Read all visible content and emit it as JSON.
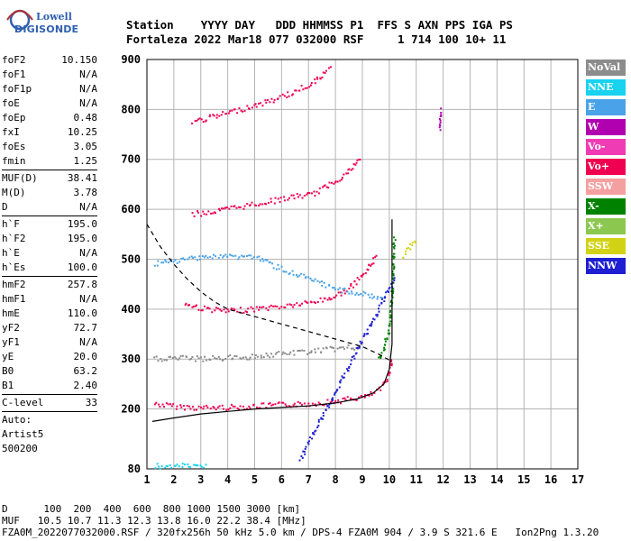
{
  "logo": {
    "line1": "Lowell",
    "line2": "DIGISONDE"
  },
  "header": {
    "row1": "Station    YYYY DAY   DDD HHMMSS P1  FFS S AXN PPS IGA PS",
    "row2": "Fortaleza 2022 Mar18 077 032000 RSF     1 714 100 10+ 11"
  },
  "params": [
    {
      "name": "foF2",
      "value": "10.150"
    },
    {
      "name": "foF1",
      "value": "N/A"
    },
    {
      "name": "foF1p",
      "value": "N/A"
    },
    {
      "name": "foE",
      "value": "N/A"
    },
    {
      "name": "foEp",
      "value": "0.48"
    },
    {
      "name": "fxI",
      "value": "10.25"
    },
    {
      "name": "foEs",
      "value": "3.05"
    },
    {
      "name": "fmin",
      "value": "1.25"
    },
    {
      "divider": true
    },
    {
      "name": "MUF(D)",
      "value": "38.41"
    },
    {
      "name": "M(D)",
      "value": "3.78"
    },
    {
      "name": "D",
      "value": "N/A"
    },
    {
      "divider": true
    },
    {
      "name": "h`F",
      "value": "195.0"
    },
    {
      "name": "h`F2",
      "value": "195.0"
    },
    {
      "name": "h`E",
      "value": "N/A"
    },
    {
      "name": "h`Es",
      "value": "100.0"
    },
    {
      "divider": true
    },
    {
      "name": "hmF2",
      "value": "257.8"
    },
    {
      "name": "hmF1",
      "value": "N/A"
    },
    {
      "name": "hmE",
      "value": "110.0"
    },
    {
      "name": "yF2",
      "value": "72.7"
    },
    {
      "name": "yF1",
      "value": "N/A"
    },
    {
      "name": "yE",
      "value": "20.0"
    },
    {
      "name": "B0",
      "value": "63.2"
    },
    {
      "name": "B1",
      "value": "2.40"
    },
    {
      "divider": true
    },
    {
      "name": "C-level",
      "value": "33"
    },
    {
      "divider": true
    },
    {
      "text": "Auto:"
    },
    {
      "text": "Artist5"
    },
    {
      "text": "500200"
    }
  ],
  "legend": [
    {
      "label": "NoVal",
      "color": "#8c8c8c"
    },
    {
      "label": "NNE",
      "color": "#19d2f0"
    },
    {
      "label": "E",
      "color": "#4aa3e8"
    },
    {
      "label": "W",
      "color": "#b000b0"
    },
    {
      "label": "Vo-",
      "color": "#f03cb4"
    },
    {
      "label": "Vo+",
      "color": "#f00050"
    },
    {
      "label": "SSW",
      "color": "#f5a0a0"
    },
    {
      "label": "X-",
      "color": "#008200"
    },
    {
      "label": "X+",
      "color": "#8cc850"
    },
    {
      "label": "SSE",
      "color": "#d2d214"
    },
    {
      "label": "NNW",
      "color": "#1e1ed2"
    }
  ],
  "footer": {
    "line1": "D      100  200  400  600  800 1000 1500 3000 [km]",
    "line2": "MUF   10.5 10.7 11.3 12.3 13.8 16.0 22.2 38.4 [MHz]",
    "line3": "FZA0M_2022077032000.RSF / 320fx256h 50 kHz 5.0 km / DPS-4 FZA0M 904 / 3.9 S 321.6 E   Ion2Png 1.3.20"
  },
  "chart_data": {
    "type": "scatter",
    "title": "",
    "xlabel": "",
    "ylabel": "",
    "xlim": [
      1,
      17
    ],
    "ylim": [
      80,
      900
    ],
    "x_ticks": [
      1,
      2,
      3,
      4,
      5,
      6,
      7,
      8,
      9,
      10,
      11,
      12,
      13,
      14,
      15,
      16,
      17
    ],
    "y_ticks": [
      80,
      200,
      300,
      400,
      500,
      600,
      700,
      800,
      900
    ],
    "grid": true,
    "legend_position": "right",
    "series": [
      {
        "name": "Vo+",
        "color": "#f00050",
        "x": [
          1.3,
          2.0,
          3.0,
          4.0,
          5.0,
          6.0,
          7.0,
          8.0,
          8.6,
          9.2,
          9.7,
          10.0,
          10.1
        ],
        "y": [
          210,
          205,
          202,
          203,
          205,
          208,
          210,
          215,
          220,
          225,
          240,
          270,
          300
        ]
      },
      {
        "name": "Vo+",
        "color": "#f00050",
        "x": [
          2.4,
          3.0,
          4.0,
          5.0,
          6.0,
          7.0,
          7.5,
          8.0,
          8.5,
          9.0,
          9.5
        ],
        "y": [
          410,
          402,
          395,
          400,
          405,
          412,
          418,
          425,
          440,
          465,
          505
        ]
      },
      {
        "name": "Vo+",
        "color": "#f00050",
        "x": [
          2.7,
          3.5,
          4.5,
          5.5,
          6.5,
          7.2,
          7.8,
          8.4,
          8.9
        ],
        "y": [
          590,
          595,
          605,
          615,
          625,
          630,
          650,
          670,
          700
        ]
      },
      {
        "name": "Vo+",
        "color": "#f00050",
        "x": [
          2.7,
          3.5,
          4.5,
          5.5,
          6.5,
          7.2,
          7.8
        ],
        "y": [
          775,
          785,
          800,
          815,
          835,
          855,
          880
        ]
      },
      {
        "name": "X-",
        "color": "#008200",
        "x": [
          9.6,
          9.8,
          10.0,
          10.1,
          10.2
        ],
        "y": [
          300,
          320,
          360,
          420,
          540
        ]
      },
      {
        "name": "NoVal",
        "color": "#8c8c8c",
        "x": [
          1.3,
          2.0,
          3.0,
          4.0,
          5.0,
          6.0,
          7.0,
          8.0,
          9.0
        ],
        "y": [
          300,
          302,
          300,
          302,
          305,
          310,
          315,
          320,
          325
        ]
      },
      {
        "name": "E",
        "color": "#4aa3e8",
        "x": [
          1.3,
          2.0,
          3.0,
          4.0,
          5.0,
          6.0,
          7.0,
          8.0,
          9.0,
          9.8
        ],
        "y": [
          490,
          495,
          505,
          505,
          505,
          480,
          460,
          440,
          430,
          420
        ]
      },
      {
        "name": "NNW",
        "color": "#1e1ed2",
        "x": [
          6.7,
          10.2
        ],
        "y": [
          100,
          460
        ]
      },
      {
        "name": "SSE",
        "color": "#d2d214",
        "x": [
          10.5,
          10.8,
          11.0
        ],
        "y": [
          505,
          525,
          535
        ]
      },
      {
        "name": "W",
        "color": "#b000b0",
        "x": [
          11.9,
          11.9
        ],
        "y": [
          760,
          800
        ]
      },
      {
        "name": "NNE",
        "color": "#19d2f0",
        "x": [
          1.3,
          1.8,
          2.5,
          3.2
        ],
        "y": [
          85,
          85,
          85,
          87
        ]
      }
    ],
    "curves": [
      {
        "name": "profile",
        "style": "solid",
        "x": [
          1.2,
          2.0,
          3.0,
          4.0,
          5.0,
          6.0,
          7.0,
          8.0,
          8.8,
          9.4,
          9.8,
          10.0,
          10.1,
          10.1
        ],
        "y": [
          175,
          182,
          190,
          195,
          200,
          203,
          206,
          212,
          220,
          232,
          250,
          280,
          330,
          580
        ]
      },
      {
        "name": "MUF",
        "style": "dashed",
        "x": [
          1.0,
          1.5,
          2.0,
          2.5,
          3.0,
          3.5,
          4.0,
          5.0,
          6.0,
          7.0,
          8.0,
          9.0,
          9.6,
          10.1
        ],
        "y": [
          570,
          525,
          490,
          460,
          435,
          415,
          400,
          385,
          370,
          355,
          340,
          325,
          310,
          295
        ]
      }
    ]
  }
}
